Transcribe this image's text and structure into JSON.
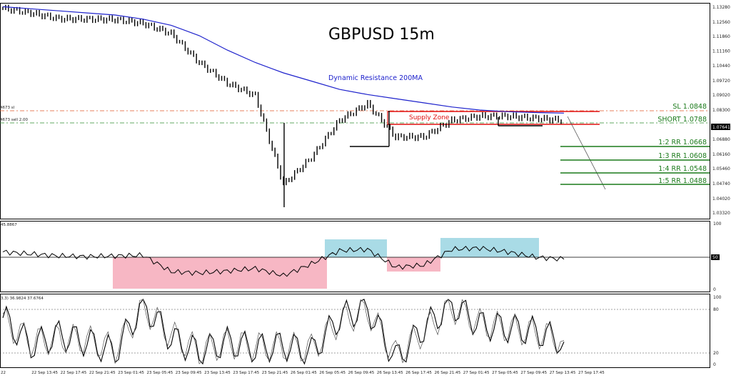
{
  "title": "GBPUSD 15m",
  "annotations": {
    "dynamic_resistance": "Dynamic Resistance 200MA",
    "supply_zone": "Supply Zone",
    "sl": "SL 1.0848",
    "short": "SHORT 1.0788",
    "targets": [
      "1:2 RR 1.0668",
      "1:3 RR 1.0608",
      "1:4 RR 1.0548",
      "1:5 RR 1.0488"
    ],
    "order_label_top": "4673 sl",
    "order_label_bottom": "4673 sell 2.00"
  },
  "colors": {
    "ma": "#1e22cc",
    "supply": "#e01010",
    "targets": "#1a7a1a",
    "sl_line": "#e05a2a",
    "entry_line": "#2f8f2f",
    "rsi_bull_zone": "#a9dbe6",
    "rsi_bear_zone": "#f7b7c4",
    "price_tag_bg": "#000000"
  },
  "price_axis": {
    "ticks": [
      "1.13280",
      "1.12560",
      "1.11860",
      "1.11160",
      "1.10440",
      "1.09720",
      "1.09020",
      "1.08300",
      "1.07641",
      "1.06880",
      "1.06160",
      "1.05460",
      "1.04740",
      "1.04020",
      "1.03320"
    ],
    "current_price": "1.07641"
  },
  "time_axis": {
    "ticks": [
      "22 Sep 2022",
      "22 Sep 13:45",
      "22 Sep 17:45",
      "22 Sep 21:45",
      "23 Sep 01:45",
      "23 Sep 05:45",
      "23 Sep 09:45",
      "23 Sep 13:45",
      "23 Sep 17:45",
      "23 Sep 21:45",
      "26 Sep 01:45",
      "26 Sep 05:45",
      "26 Sep 09:45",
      "26 Sep 13:45",
      "26 Sep 17:45",
      "26 Sep 21:45",
      "27 Sep 01:45",
      "27 Sep 05:45",
      "27 Sep 09:45",
      "27 Sep 13:45",
      "27 Sep 17:45"
    ]
  },
  "rsi_panel": {
    "label": "45.8867",
    "scale": [
      "100",
      "50",
      "0"
    ]
  },
  "stoch_panel": {
    "label": "3,3) 36.9824 37.6764",
    "scale": [
      "100",
      "80",
      "20",
      "0"
    ]
  },
  "chart_data": [
    {
      "type": "line",
      "name": "price",
      "x": [
        "22 Sep 2022",
        "22 Sep 13:45",
        "22 Sep 17:45",
        "22 Sep 21:45",
        "23 Sep 01:45",
        "23 Sep 05:45",
        "23 Sep 09:45",
        "23 Sep 13:45",
        "23 Sep 17:45",
        "23 Sep 21:45",
        "26 Sep 01:45",
        "26 Sep 05:45",
        "26 Sep 09:45",
        "26 Sep 13:45",
        "26 Sep 17:45",
        "26 Sep 21:45",
        "27 Sep 01:45",
        "27 Sep 05:45",
        "27 Sep 09:45",
        "27 Sep 13:45",
        "27 Sep 17:45"
      ],
      "series": [
        {
          "values": [
            1.1322,
            1.13,
            1.1272,
            1.127,
            1.1268,
            1.125,
            1.12,
            1.106,
            1.096,
            1.09,
            1.047,
            1.06,
            1.078,
            1.086,
            1.07,
            1.07,
            1.078,
            1.08,
            1.08,
            1.079,
            1.078
          ]
        },
        {
          "name": "Dynamic Resistance 200MA",
          "values": [
            1.133,
            1.132,
            1.131,
            1.13,
            1.129,
            1.127,
            1.124,
            1.119,
            1.112,
            1.106,
            1.101,
            1.097,
            1.093,
            1.0905,
            1.0885,
            1.0865,
            1.0845,
            1.083,
            1.0822,
            1.0818,
            1.0815
          ]
        }
      ],
      "levels": {
        "sl": 1.0848,
        "short": 1.0788,
        "tp_1_2": 1.0668,
        "tp_1_3": 1.0608,
        "tp_1_4": 1.0548,
        "tp_1_5": 1.0488
      },
      "ylim": [
        1.0332,
        1.1328
      ]
    },
    {
      "type": "line",
      "name": "rsi",
      "series": [
        {
          "values": [
            58,
            55,
            52,
            51,
            52,
            53,
            28,
            26,
            29,
            33,
            22,
            40,
            60,
            62,
            35,
            38,
            62,
            64,
            58,
            50,
            47
          ]
        }
      ],
      "ylim": [
        0,
        100
      ]
    },
    {
      "type": "line",
      "name": "stochastic",
      "series": [
        {
          "values": [
            70,
            30,
            45,
            35,
            20,
            90,
            40,
            20,
            35,
            25,
            30,
            20,
            70,
            85,
            10,
            55,
            90,
            60,
            55,
            50,
            35
          ]
        },
        {
          "values": [
            65,
            35,
            40,
            38,
            25,
            85,
            45,
            22,
            33,
            28,
            28,
            25,
            65,
            80,
            15,
            50,
            85,
            62,
            55,
            48,
            37
          ]
        }
      ],
      "ylim": [
        0,
        100
      ]
    }
  ]
}
